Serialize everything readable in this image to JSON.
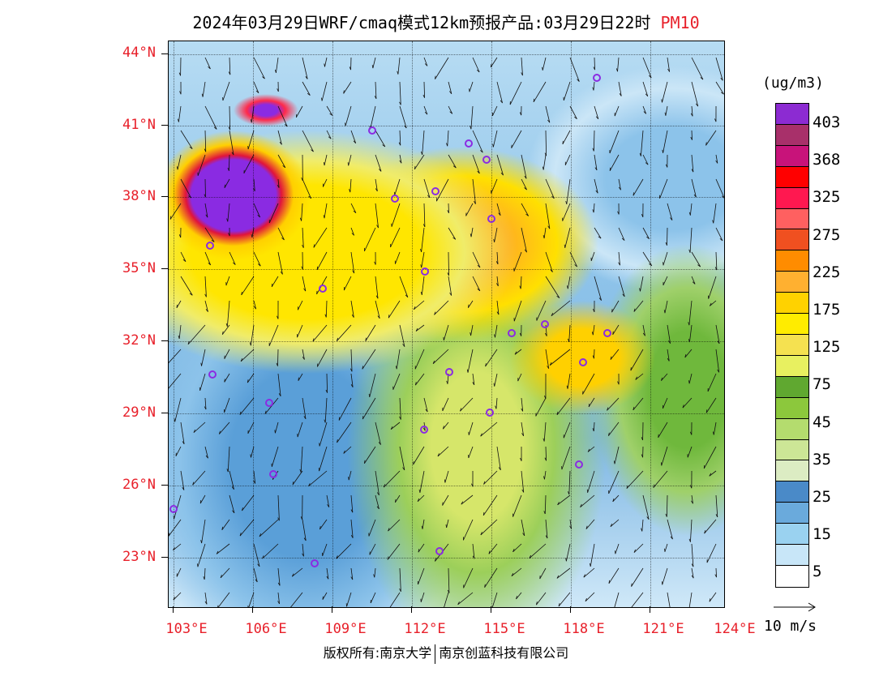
{
  "title": {
    "main": "2024年03月29日WRF/cmaq模式12km预报产品:03月29日22时",
    "pollutant": "PM10"
  },
  "map": {
    "lat_labels": [
      "44°N",
      "41°N",
      "38°N",
      "35°N",
      "32°N",
      "29°N",
      "26°N",
      "23°N"
    ],
    "lon_labels": [
      "103°E",
      "106°E",
      "109°E",
      "112°E",
      "115°E",
      "118°E",
      "121°E",
      "124°E"
    ],
    "field_colors": {
      "very_high": "#8a2be2",
      "high": "#ffe600",
      "moderate": "#9ccf5a",
      "low": "#5a9fd8",
      "minimal": "#cfe8f8"
    }
  },
  "colorbar": {
    "unit": "(ug/m3)",
    "colors": [
      "#8c2bd2",
      "#a8306a",
      "#c8137a",
      "#ff0000",
      "#ff1850",
      "#ff6060",
      "#f05020",
      "#ff8c00",
      "#ffb030",
      "#ffd200",
      "#ffec00",
      "#f5e150",
      "#e8f060",
      "#60a830",
      "#8cc83c",
      "#b4dc6e",
      "#cce696",
      "#dcecc3",
      "#4a8ac8",
      "#6aaadc",
      "#9ad2f0",
      "#c8e6f8",
      "#ffffff"
    ],
    "labels": [
      "403",
      "368",
      "325",
      "275",
      "225",
      "175",
      "125",
      "75",
      "45",
      "35",
      "25",
      "15",
      "5"
    ]
  },
  "wind_legend": {
    "label": "10 m/s"
  },
  "footer": {
    "copyright": "版权所有:南京大学",
    "company": "南京创蓝科技有限公司"
  }
}
